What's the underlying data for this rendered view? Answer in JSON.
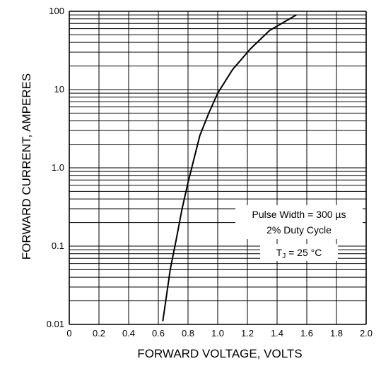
{
  "chart_data": {
    "type": "line",
    "title": "",
    "xlabel": "FORWARD VOLTAGE, VOLTS",
    "ylabel": "FORWARD CURRENT, AMPERES",
    "x_scale": "linear",
    "y_scale": "log",
    "xlim": [
      0,
      2.0
    ],
    "ylim": [
      0.01,
      100
    ],
    "x_ticks": [
      "0",
      "0.2",
      "0.4",
      "0.6",
      "0.8",
      "1.0",
      "1.2",
      "1.4",
      "1.6",
      "1.8",
      "2.0"
    ],
    "y_ticks": [
      "0.01",
      "0.1",
      "1.0",
      "10",
      "100"
    ],
    "grid": true,
    "series": [
      {
        "x": [
          0.63,
          0.65,
          0.68,
          0.72,
          0.76,
          0.8,
          0.84,
          0.88,
          0.94,
          1.0,
          1.1,
          1.22,
          1.35,
          1.53
        ],
        "y": [
          0.011,
          0.02,
          0.05,
          0.12,
          0.3,
          0.65,
          1.3,
          2.6,
          5.0,
          9.0,
          18,
          33,
          57,
          90
        ]
      }
    ],
    "annotations": {
      "pulse_line1": "Pulse Width = 300 µs",
      "pulse_line2": "2% Duty Cycle",
      "temp_T": "T",
      "temp_sub": "J",
      "temp_rest": " = 25 °C"
    }
  }
}
